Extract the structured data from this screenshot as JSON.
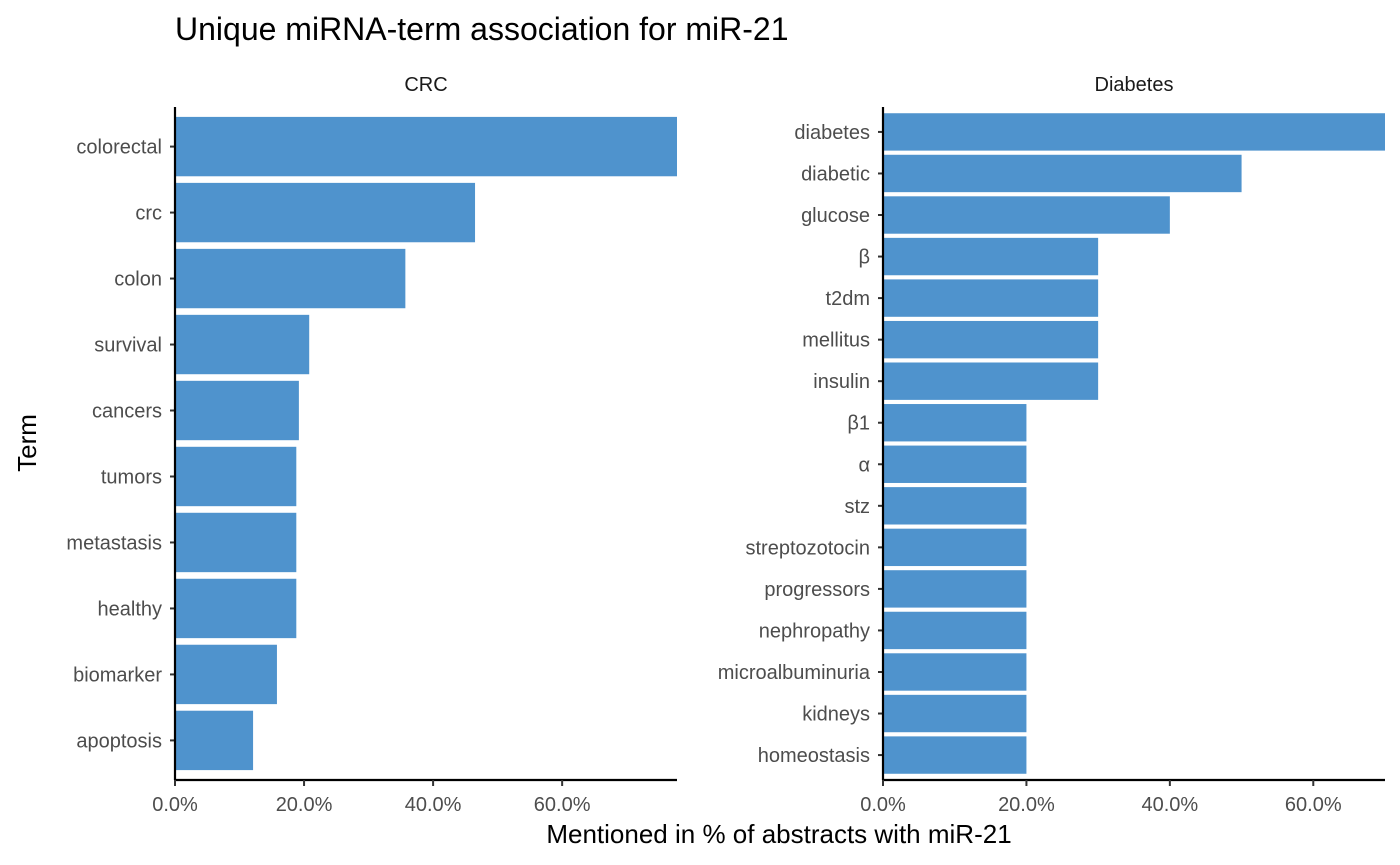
{
  "chart_data": {
    "type": "bar",
    "orientation": "horizontal",
    "title": "Unique miRNA-term association for miR-21",
    "xlabel": "Mentioned in % of abstracts with miR-21",
    "ylabel": "Term",
    "bar_color": "#4f93cd",
    "grid": false,
    "legend": "none",
    "x_ticks": [
      "0.0%",
      "20.0%",
      "40.0%",
      "60.0%"
    ],
    "panels": [
      {
        "facet": "CRC",
        "xlim": [
          0,
          77.8
        ],
        "categories": [
          "colorectal",
          "crc",
          "colon",
          "survival",
          "cancers",
          "tumors",
          "metastasis",
          "healthy",
          "biomarker",
          "apoptosis"
        ],
        "values": [
          77.8,
          46.5,
          35.7,
          20.8,
          19.2,
          18.8,
          18.8,
          18.8,
          15.8,
          12.1
        ]
      },
      {
        "facet": "Diabetes",
        "xlim": [
          0,
          70
        ],
        "categories": [
          "diabetes",
          "diabetic",
          "glucose",
          "β",
          "t2dm",
          "mellitus",
          "insulin",
          "β1",
          "α",
          "stz",
          "streptozotocin",
          "progressors",
          "nephropathy",
          "microalbuminuria",
          "kidneys",
          "homeostasis"
        ],
        "values": [
          70,
          50,
          40,
          30,
          30,
          30,
          30,
          20,
          20,
          20,
          20,
          20,
          20,
          20,
          20,
          20
        ]
      }
    ]
  }
}
